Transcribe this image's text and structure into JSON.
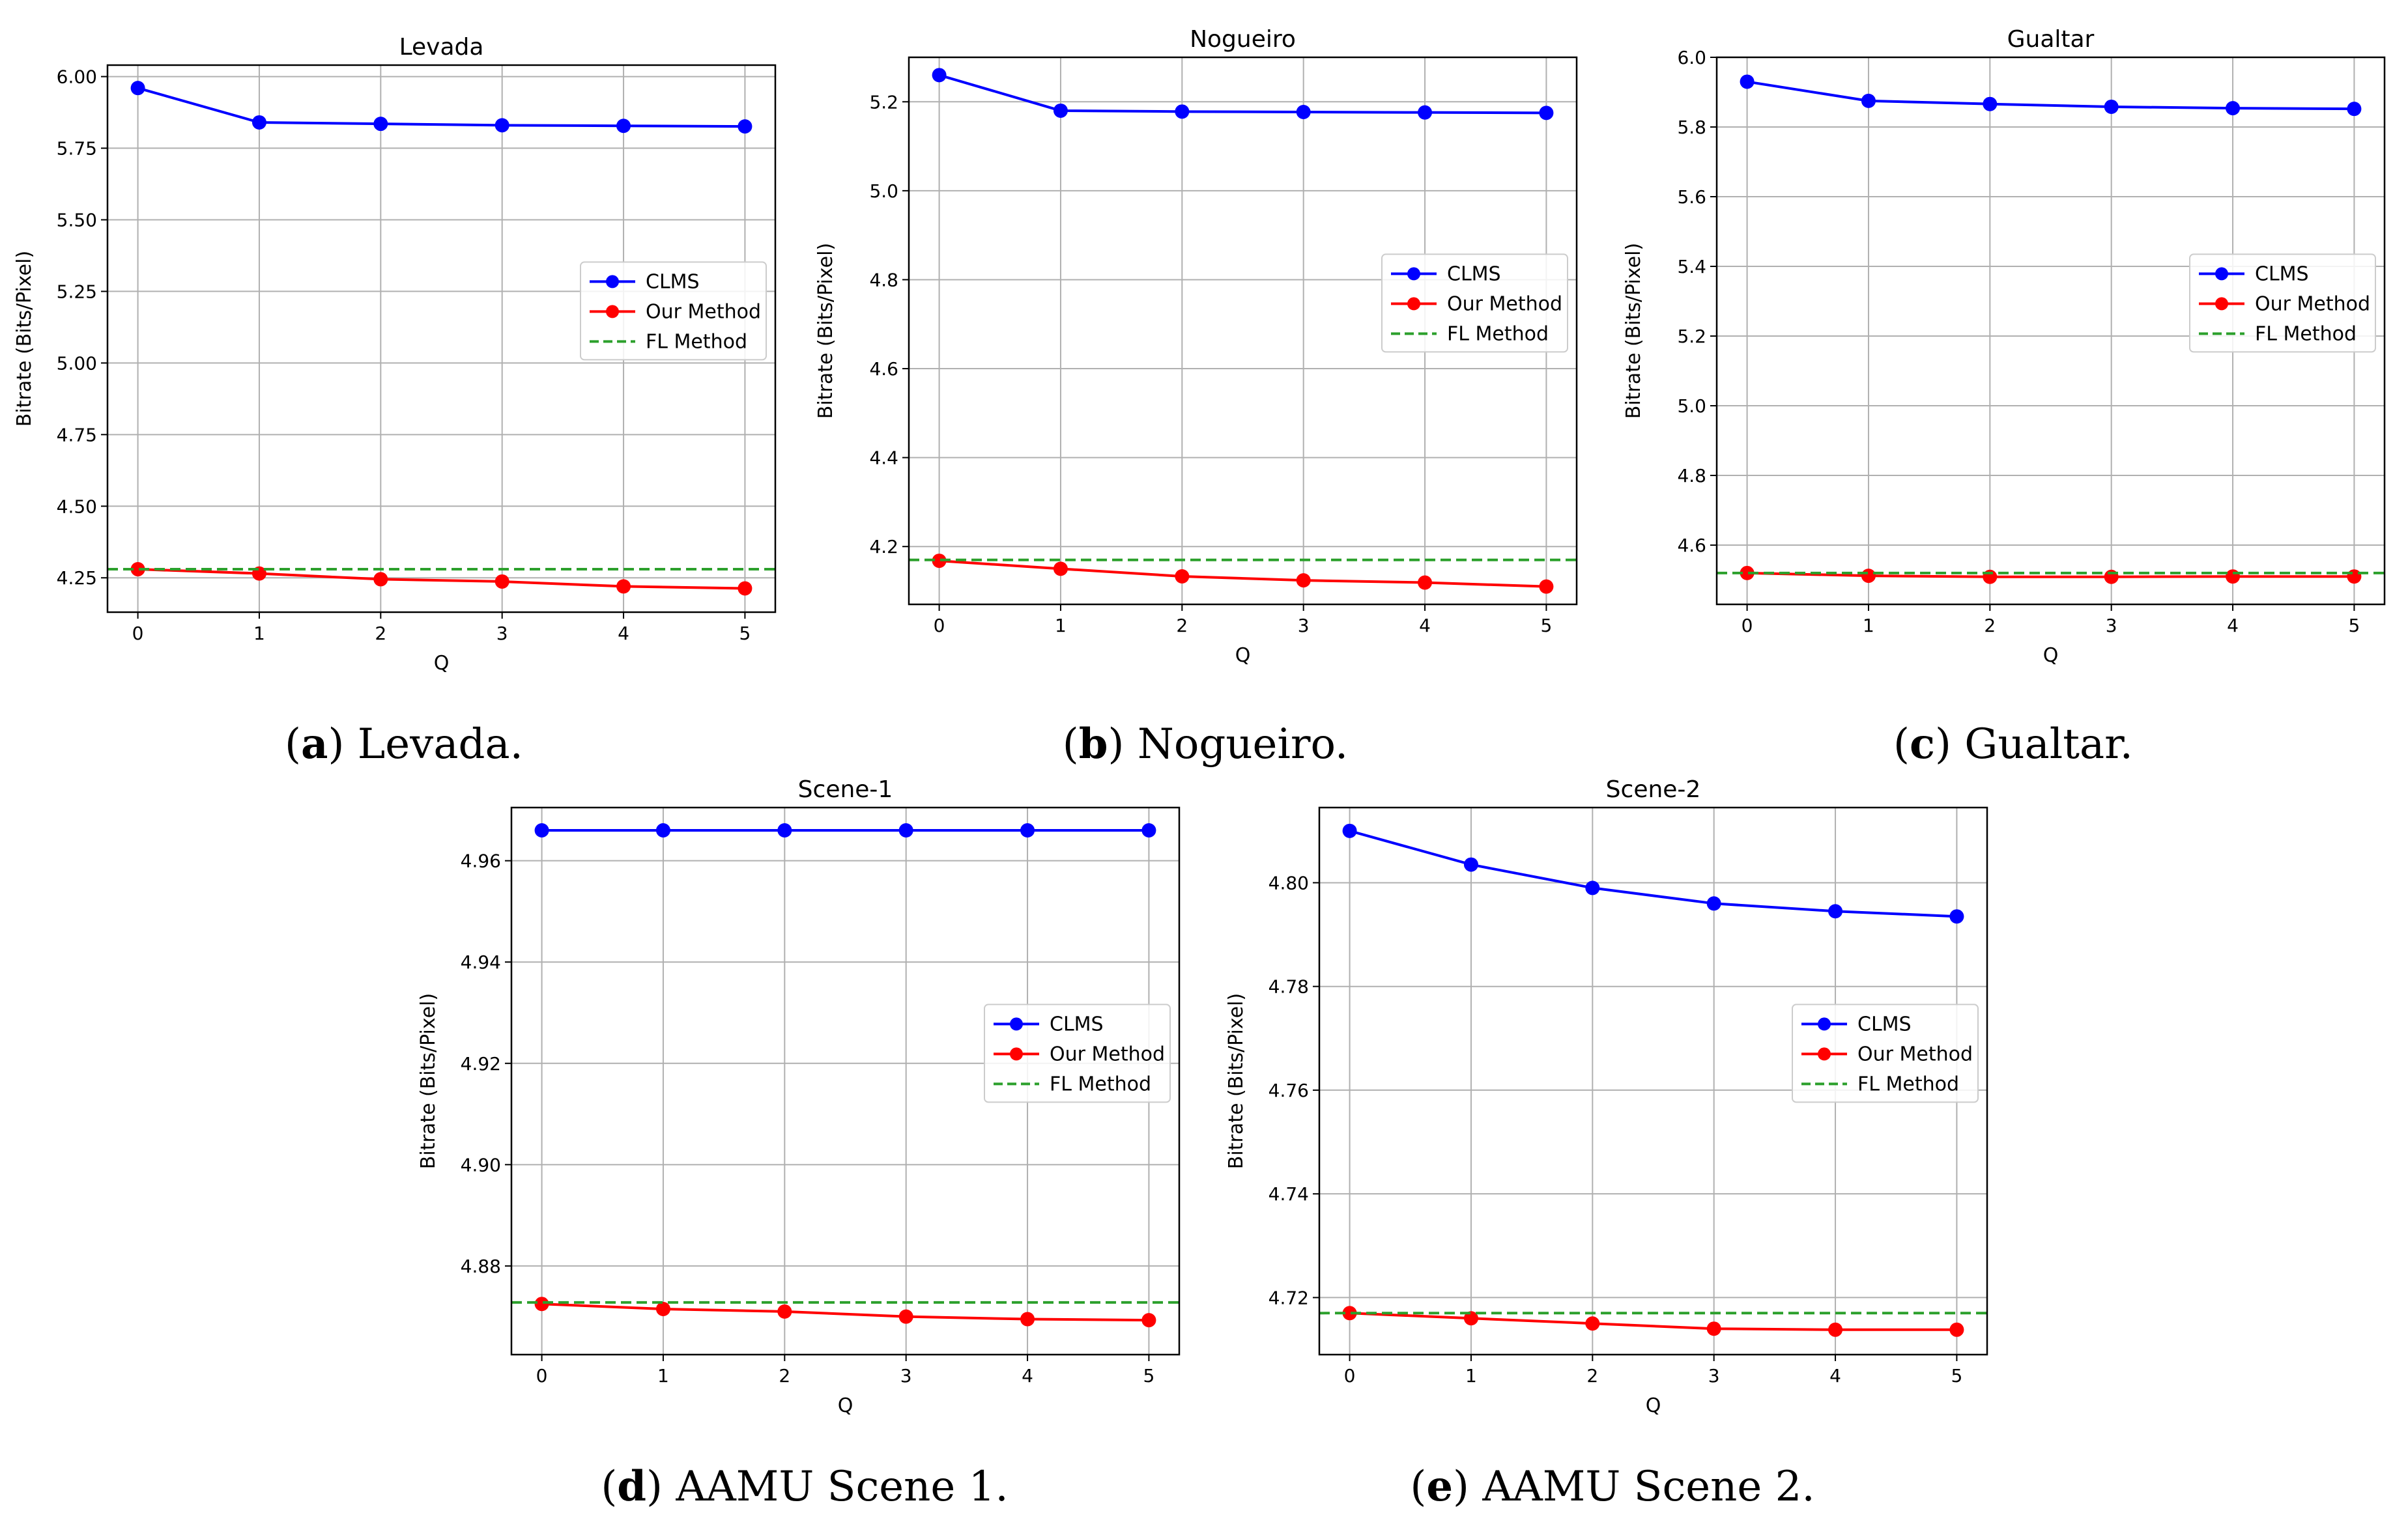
{
  "chart_data": [
    {
      "type": "line",
      "title": "Levada",
      "xlabel": "Q",
      "ylabel": "Bitrate (Bits/Pixel)",
      "x": [
        0,
        1,
        2,
        3,
        4,
        5
      ],
      "xlim": [
        -0.25,
        5.25
      ],
      "ylim": [
        4.13,
        6.04
      ],
      "yticks": [
        4.25,
        4.5,
        4.75,
        5.0,
        5.25,
        5.5,
        5.75,
        6.0
      ],
      "ytick_labels": [
        "4.25",
        "4.50",
        "4.75",
        "5.00",
        "5.25",
        "5.50",
        "5.75",
        "6.00"
      ],
      "grid": true,
      "legend_position": "center-right",
      "series": [
        {
          "name": "CLMS",
          "color": "#0000ff",
          "marker": "circle",
          "values": [
            5.96,
            5.84,
            5.835,
            5.83,
            5.828,
            5.826
          ]
        },
        {
          "name": "Our Method",
          "color": "#ff0000",
          "marker": "circle",
          "values": [
            4.28,
            4.265,
            4.245,
            4.237,
            4.22,
            4.213
          ]
        },
        {
          "name": "FL Method",
          "color": "#2ca02c",
          "style": "dashed",
          "constant": 4.28
        }
      ],
      "caption_letter": "a",
      "caption_text": "Levada."
    },
    {
      "type": "line",
      "title": "Nogueiro",
      "xlabel": "Q",
      "ylabel": "Bitrate (Bits/Pixel)",
      "x": [
        0,
        1,
        2,
        3,
        4,
        5
      ],
      "xlim": [
        -0.25,
        5.25
      ],
      "ylim": [
        4.07,
        5.3
      ],
      "yticks": [
        4.2,
        4.4,
        4.6,
        4.8,
        5.0,
        5.2
      ],
      "ytick_labels": [
        "4.2",
        "4.4",
        "4.6",
        "4.8",
        "5.0",
        "5.2"
      ],
      "grid": true,
      "legend_position": "center-right",
      "series": [
        {
          "name": "CLMS",
          "color": "#0000ff",
          "marker": "circle",
          "values": [
            5.26,
            5.18,
            5.178,
            5.177,
            5.176,
            5.175
          ]
        },
        {
          "name": "Our Method",
          "color": "#ff0000",
          "marker": "circle",
          "values": [
            4.168,
            4.15,
            4.133,
            4.124,
            4.119,
            4.11
          ]
        },
        {
          "name": "FL Method",
          "color": "#2ca02c",
          "style": "dashed",
          "constant": 4.17
        }
      ],
      "caption_letter": "b",
      "caption_text": "Nogueiro."
    },
    {
      "type": "line",
      "title": "Gualtar",
      "xlabel": "Q",
      "ylabel": "Bitrate (Bits/Pixel)",
      "x": [
        0,
        1,
        2,
        3,
        4,
        5
      ],
      "xlim": [
        -0.25,
        5.25
      ],
      "ylim": [
        4.43,
        6.0
      ],
      "yticks": [
        4.6,
        4.8,
        5.0,
        5.2,
        5.4,
        5.6,
        5.8,
        6.0
      ],
      "ytick_labels": [
        "4.6",
        "4.8",
        "5.0",
        "5.2",
        "5.4",
        "5.6",
        "5.8",
        "6.0"
      ],
      "grid": true,
      "legend_position": "center-right",
      "series": [
        {
          "name": "CLMS",
          "color": "#0000ff",
          "marker": "circle",
          "values": [
            5.93,
            5.875,
            5.866,
            5.858,
            5.854,
            5.852
          ]
        },
        {
          "name": "Our Method",
          "color": "#ff0000",
          "marker": "circle",
          "values": [
            4.52,
            4.512,
            4.509,
            4.509,
            4.51,
            4.51
          ]
        },
        {
          "name": "FL Method",
          "color": "#2ca02c",
          "style": "dashed",
          "constant": 4.52
        }
      ],
      "caption_letter": "c",
      "caption_text": "Gualtar."
    },
    {
      "type": "line",
      "title": "Scene-1",
      "xlabel": "Q",
      "ylabel": "Bitrate (Bits/Pixel)",
      "x": [
        0,
        1,
        2,
        3,
        4,
        5
      ],
      "xlim": [
        -0.25,
        5.25
      ],
      "ylim": [
        4.8625,
        4.9705
      ],
      "yticks": [
        4.88,
        4.9,
        4.92,
        4.94,
        4.96
      ],
      "ytick_labels": [
        "4.88",
        "4.90",
        "4.92",
        "4.94",
        "4.96"
      ],
      "grid": true,
      "legend_position": "center-right",
      "series": [
        {
          "name": "CLMS",
          "color": "#0000ff",
          "marker": "circle",
          "values": [
            4.966,
            4.966,
            4.966,
            4.966,
            4.966,
            4.966
          ]
        },
        {
          "name": "Our Method",
          "color": "#ff0000",
          "marker": "circle",
          "values": [
            4.8725,
            4.8715,
            4.871,
            4.87,
            4.8695,
            4.8693
          ]
        },
        {
          "name": "FL Method",
          "color": "#2ca02c",
          "style": "dashed",
          "constant": 4.8728
        }
      ],
      "caption_letter": "d",
      "caption_text": "AAMU Scene 1."
    },
    {
      "type": "line",
      "title": "Scene-2",
      "xlabel": "Q",
      "ylabel": "Bitrate (Bits/Pixel)",
      "x": [
        0,
        1,
        2,
        3,
        4,
        5
      ],
      "xlim": [
        -0.25,
        5.25
      ],
      "ylim": [
        4.709,
        4.8145
      ],
      "yticks": [
        4.72,
        4.74,
        4.76,
        4.78,
        4.8
      ],
      "ytick_labels": [
        "4.72",
        "4.74",
        "4.76",
        "4.78",
        "4.80"
      ],
      "grid": true,
      "legend_position": "center-right",
      "series": [
        {
          "name": "CLMS",
          "color": "#0000ff",
          "marker": "circle",
          "values": [
            4.81,
            4.8035,
            4.799,
            4.796,
            4.7945,
            4.7935
          ]
        },
        {
          "name": "Our Method",
          "color": "#ff0000",
          "marker": "circle",
          "values": [
            4.717,
            4.716,
            4.715,
            4.714,
            4.7138,
            4.7138
          ]
        },
        {
          "name": "FL Method",
          "color": "#2ca02c",
          "style": "dashed",
          "constant": 4.717
        }
      ],
      "caption_letter": "e",
      "caption_text": "AAMU Scene 2."
    }
  ]
}
